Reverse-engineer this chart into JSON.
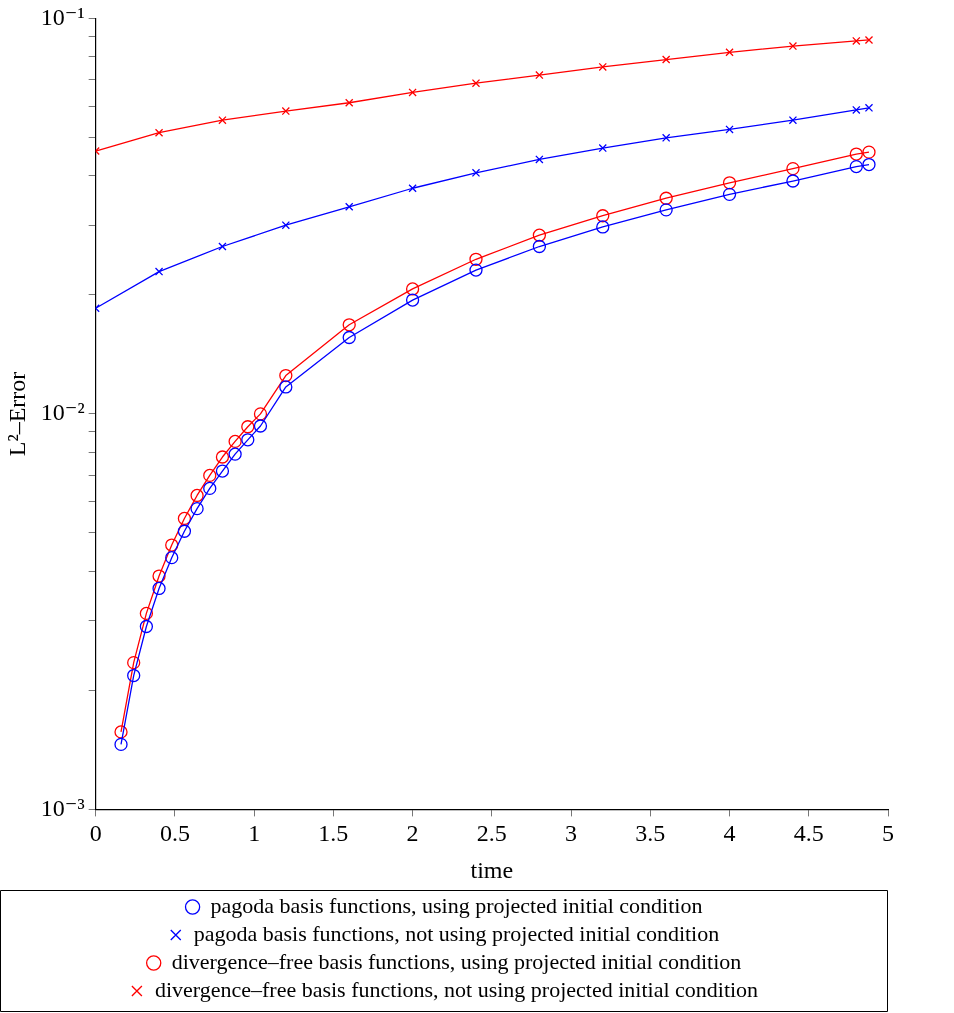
{
  "chart_data": {
    "type": "line",
    "xlabel": "time",
    "ylabel": "L²–Error",
    "log": "y",
    "grid": false,
    "legend": "bottom",
    "xlim": [
      0,
      5
    ],
    "xticks": [
      0,
      0.5,
      1,
      1.5,
      2,
      2.5,
      3,
      3.5,
      4,
      4.5,
      5
    ],
    "ylim": [
      0.001,
      0.1
    ],
    "yticks": [
      {
        "value": 0.001,
        "label": "10⁻³"
      },
      {
        "value": 0.002,
        "label": null
      },
      {
        "value": 0.003,
        "label": null
      },
      {
        "value": 0.004,
        "label": null
      },
      {
        "value": 0.005,
        "label": null
      },
      {
        "value": 0.006,
        "label": null
      },
      {
        "value": 0.007,
        "label": null
      },
      {
        "value": 0.008,
        "label": null
      },
      {
        "value": 0.009,
        "label": null
      },
      {
        "value": 0.01,
        "label": "10⁻²"
      },
      {
        "value": 0.02,
        "label": null
      },
      {
        "value": 0.03,
        "label": null
      },
      {
        "value": 0.04,
        "label": null
      },
      {
        "value": 0.05,
        "label": null
      },
      {
        "value": 0.06,
        "label": null
      },
      {
        "value": 0.07,
        "label": null
      },
      {
        "value": 0.08,
        "label": null
      },
      {
        "value": 0.09,
        "label": null
      },
      {
        "value": 0.1,
        "label": "10⁻¹"
      }
    ],
    "series": [
      {
        "name": "pagoda basis functions, using projected initial condition",
        "color": "#0000ff",
        "marker": "circle",
        "x": [
          0.16,
          0.24,
          0.32,
          0.4,
          0.48,
          0.56,
          0.64,
          0.72,
          0.8,
          0.88,
          0.96,
          1.04,
          1.2,
          1.6,
          2.0,
          2.4,
          2.8,
          3.2,
          3.6,
          4.0,
          4.4,
          4.8,
          4.88
        ],
        "values": [
          0.00146,
          0.00218,
          0.0029,
          0.00362,
          0.00433,
          0.00505,
          0.00576,
          0.00648,
          0.00717,
          0.00791,
          0.0086,
          0.00932,
          0.0117,
          0.0156,
          0.0194,
          0.0231,
          0.0265,
          0.0297,
          0.0328,
          0.0359,
          0.0388,
          0.0422,
          0.0427
        ]
      },
      {
        "name": "pagoda basis functions, not using projected initial condition",
        "color": "#0000ff",
        "marker": "cross",
        "x": [
          0,
          0.4,
          0.8,
          1.2,
          1.6,
          2.0,
          2.4,
          2.8,
          3.2,
          3.6,
          4.0,
          4.4,
          4.8,
          4.88
        ],
        "values": [
          0.0185,
          0.0229,
          0.0265,
          0.03,
          0.0334,
          0.0372,
          0.0407,
          0.044,
          0.047,
          0.0499,
          0.0524,
          0.0553,
          0.0587,
          0.0594
        ]
      },
      {
        "name": "divergence–free basis functions, using projected initial condition",
        "color": "#ff0000",
        "marker": "circle",
        "x": [
          0.16,
          0.24,
          0.32,
          0.4,
          0.48,
          0.56,
          0.64,
          0.72,
          0.8,
          0.88,
          0.96,
          1.04,
          1.2,
          1.6,
          2.0,
          2.4,
          2.8,
          3.2,
          3.6,
          4.0,
          4.4,
          4.8,
          4.88
        ],
        "values": [
          0.00157,
          0.00235,
          0.00313,
          0.00389,
          0.00466,
          0.00544,
          0.00622,
          0.00699,
          0.00778,
          0.00852,
          0.00928,
          0.01,
          0.0125,
          0.0168,
          0.0207,
          0.0246,
          0.0283,
          0.0317,
          0.0351,
          0.0384,
          0.0417,
          0.0454,
          0.0459
        ]
      },
      {
        "name": "divergence–free basis functions, not using projected initial condition",
        "color": "#ff0000",
        "marker": "cross",
        "x": [
          0,
          0.4,
          0.8,
          1.2,
          1.6,
          2.0,
          2.4,
          2.8,
          3.2,
          3.6,
          4.0,
          4.4,
          4.8,
          4.88
        ],
        "values": [
          0.0462,
          0.0514,
          0.0553,
          0.0583,
          0.0612,
          0.065,
          0.0686,
          0.0719,
          0.0754,
          0.0787,
          0.0821,
          0.0851,
          0.0877,
          0.0882
        ]
      }
    ]
  }
}
